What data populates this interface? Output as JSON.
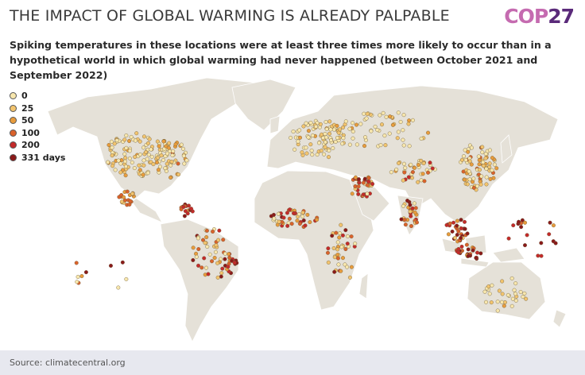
{
  "header": {
    "title": "THE IMPACT OF GLOBAL WARMING IS ALREADY PALPABLE",
    "logo": {
      "text": "COP",
      "number": "27"
    },
    "subtitle": "Spiking temperatures in these locations were at least three times more likely to occur than in a hypothetical world in which global warming had never happened (between October 2021 and September 2022)"
  },
  "legend": {
    "items": [
      {
        "label": "0",
        "color": "#f8e7ad"
      },
      {
        "label": "25",
        "color": "#f2c46e"
      },
      {
        "label": "50",
        "color": "#e89c3c"
      },
      {
        "label": "100",
        "color": "#da622b"
      },
      {
        "label": "200",
        "color": "#c42a2a"
      },
      {
        "label": "331 days",
        "color": "#8a1a1a"
      }
    ]
  },
  "footer": {
    "source": "Source: climatecentral.org"
  }
}
